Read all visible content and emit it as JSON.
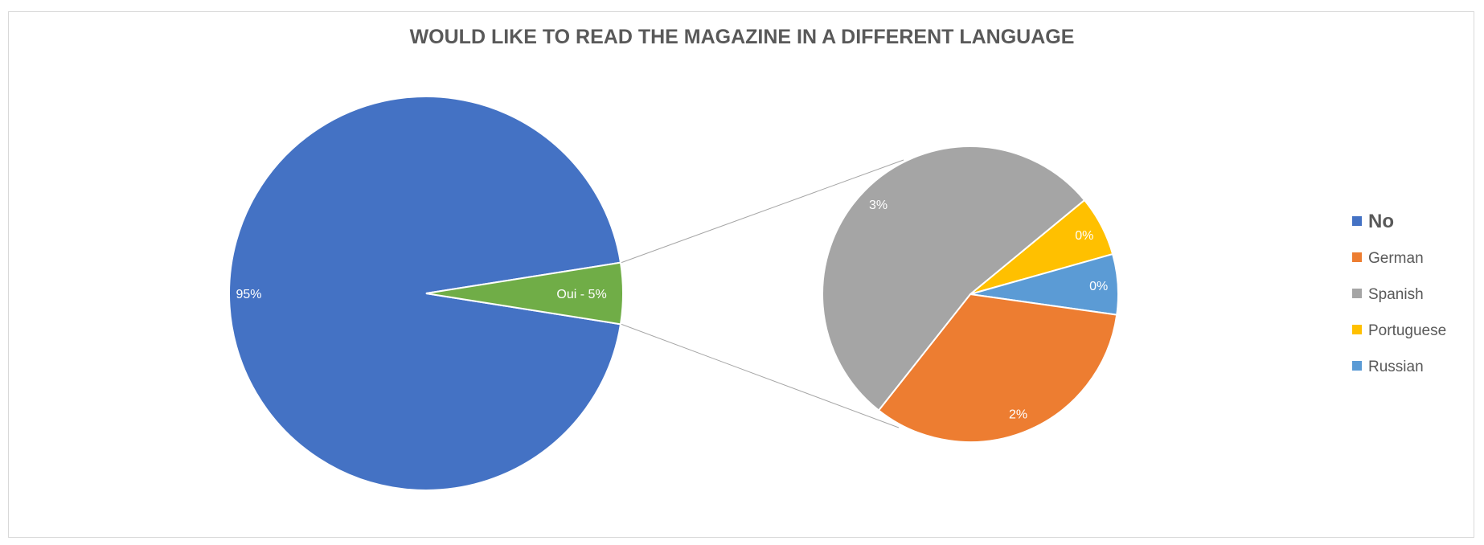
{
  "chart_data": {
    "type": "pie",
    "subtype": "pie-of-pie",
    "title": "WOULD LIKE TO READ THE MAGAZINE IN A DIFFERENT LANGUAGE",
    "main_pie": {
      "slices": [
        {
          "name": "No",
          "value": 95,
          "label": "95%",
          "color": "#4472C4"
        },
        {
          "name": "Oui",
          "value": 5,
          "label": "Oui - 5%",
          "color": "#70AD47"
        }
      ]
    },
    "secondary_pie": {
      "slices": [
        {
          "name": "Portuguese",
          "value": 0.33,
          "label": "0%",
          "color": "#FFC000"
        },
        {
          "name": "Russian",
          "value": 0.33,
          "label": "0%",
          "color": "#5B9BD5"
        },
        {
          "name": "German",
          "value": 1.67,
          "label": "2%",
          "color": "#ED7D31"
        },
        {
          "name": "Spanish",
          "value": 2.67,
          "label": "3%",
          "color": "#A5A5A5"
        }
      ]
    },
    "legend": {
      "position": "right",
      "entries": [
        {
          "name": "No",
          "color": "#4472C4"
        },
        {
          "name": "German",
          "color": "#ED7D31"
        },
        {
          "name": "Spanish",
          "color": "#A5A5A5"
        },
        {
          "name": "Portuguese",
          "color": "#FFC000"
        },
        {
          "name": "Russian",
          "color": "#5B9BD5"
        }
      ]
    }
  }
}
